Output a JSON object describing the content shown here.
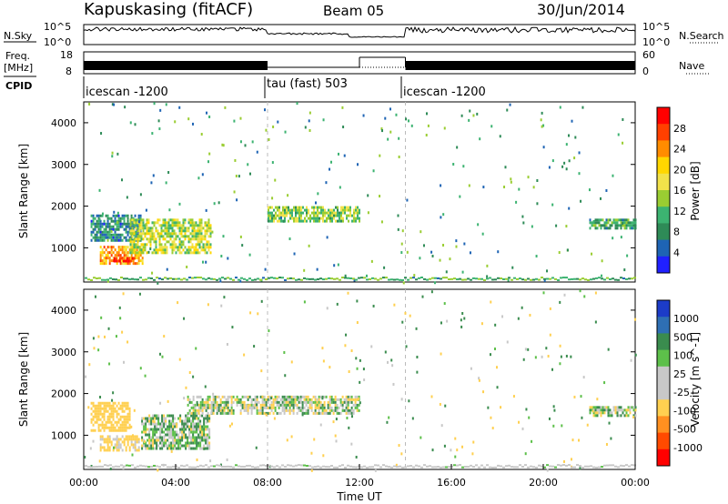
{
  "header": {
    "station": "Kapuskasing (fitACF)",
    "beam": "Beam 05",
    "date": "30/Jun/2014"
  },
  "left_labels": {
    "nsky": "N.Sky",
    "freq_line1": "Freq.",
    "freq_line2": "[MHz]",
    "cpid": "CPID"
  },
  "right_labels": {
    "nsearch": "N.Search",
    "nave": "Nave"
  },
  "noise_panel": {
    "left_ticks": [
      "10^5",
      "10^0"
    ],
    "right_ticks": [
      "10^5",
      "10^0"
    ]
  },
  "freq_panel": {
    "left_ticks": [
      "18",
      "8"
    ],
    "right_ticks": [
      "60",
      "0"
    ]
  },
  "cpid_segments": [
    {
      "label": "icescan -1200",
      "start": 0,
      "end": 8
    },
    {
      "label": "tau (fast) 503",
      "start": 8,
      "end": 14
    },
    {
      "label": "icescan -1200",
      "start": 14,
      "end": 24
    }
  ],
  "chart_data": [
    {
      "type": "heatmap",
      "panel": "power",
      "ylabel": "Slant Range [km]",
      "colorbar_label": "Power [dB]",
      "colorbar_ticks": [
        "28",
        "24",
        "20",
        "16",
        "12",
        "8",
        "4"
      ],
      "colorbar_colors": [
        "#ff0000",
        "#ff4000",
        "#ff8c00",
        "#ffd700",
        "#f2e24a",
        "#9acd32",
        "#3cb371",
        "#2e8b57",
        "#1e64b4",
        "#2020ff"
      ],
      "ylim": [
        180,
        4500
      ],
      "y_ticks": [
        "4000",
        "3000",
        "2000",
        "1000"
      ],
      "echo_regions": [
        {
          "t0": 0.3,
          "t1": 2.5,
          "r0": 1200,
          "r1": 1800,
          "power_db": 6
        },
        {
          "t0": 0.7,
          "t1": 2.6,
          "r0": 650,
          "r1": 1050,
          "power_db": 20
        },
        {
          "t0": 1.3,
          "t1": 2.2,
          "r0": 650,
          "r1": 780,
          "power_db": 28
        },
        {
          "t0": 2.0,
          "t1": 5.5,
          "r0": 900,
          "r1": 1700,
          "power_db": 14
        },
        {
          "t0": 8.0,
          "t1": 12.0,
          "r0": 1650,
          "r1": 2000,
          "power_db": 12
        },
        {
          "t0": 22.0,
          "t1": 24.0,
          "r0": 1450,
          "r1": 1700,
          "power_db": 8
        }
      ]
    },
    {
      "type": "heatmap",
      "panel": "velocity",
      "ylabel": "Slant Range [km]",
      "colorbar_label": "Velocity [m s^-1]",
      "colorbar_ticks": [
        "1000",
        "500",
        "100",
        "25",
        "-25",
        "-100",
        "-500",
        "-1000"
      ],
      "colorbar_colors": [
        "#1c3cc8",
        "#2e6fb4",
        "#3a8c4e",
        "#5dc04a",
        "#c8c8c8",
        "#c8c8c8",
        "#ffd050",
        "#ff9020",
        "#ff4a00",
        "#ff0000"
      ],
      "ylim": [
        180,
        4500
      ],
      "y_ticks": [
        "4000",
        "3000",
        "2000",
        "1000"
      ],
      "x_ticks": [
        "00:00",
        "04:00",
        "08:00",
        "12:00",
        "16:00",
        "20:00",
        "00:00"
      ],
      "xlabel": "Time UT",
      "echo_regions": [
        {
          "t0": 0.3,
          "t1": 2.0,
          "r0": 1100,
          "r1": 1800,
          "velocity": -300
        },
        {
          "t0": 0.7,
          "t1": 2.4,
          "r0": 650,
          "r1": 1000,
          "velocity": -200
        },
        {
          "t0": 2.5,
          "t1": 5.5,
          "r0": 700,
          "r1": 1500,
          "velocity": 50
        },
        {
          "t0": 4.5,
          "t1": 12.0,
          "r0": 1500,
          "r1": 1950,
          "velocity": 0
        },
        {
          "t0": 22.0,
          "t1": 24.0,
          "r0": 1450,
          "r1": 1700,
          "velocity": 0
        }
      ]
    }
  ]
}
